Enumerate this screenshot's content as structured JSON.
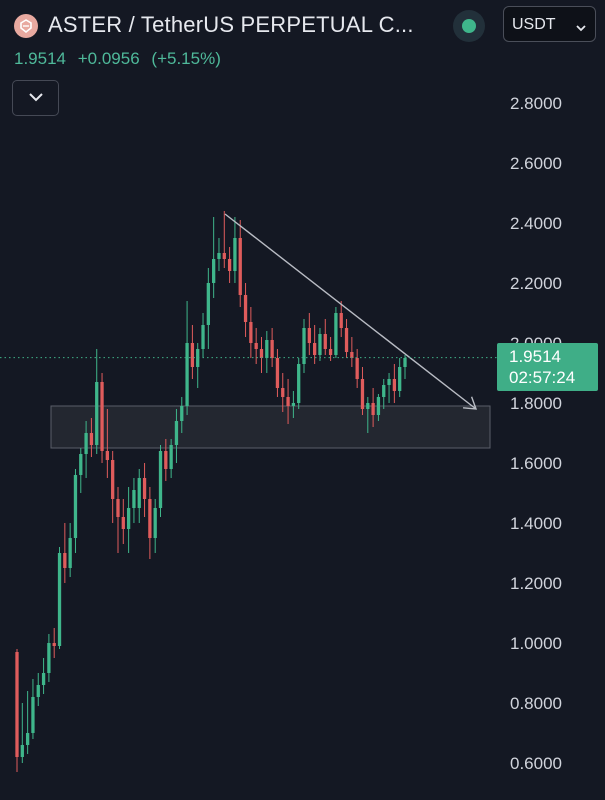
{
  "header": {
    "logo_icon": "aster-logo-icon",
    "title": "ASTER / TetherUS PERPETUAL C...",
    "status_icon": "market-open-dot-icon",
    "currency": {
      "label": "USDT",
      "icon": "chevron-down-icon"
    },
    "price": "1.9514",
    "change": "+0.0956",
    "change_pct": "(+5.15%)",
    "collapse_icon": "chevron-down-icon"
  },
  "colors": {
    "up": "#3fb68b",
    "down": "#e05c5c",
    "background": "#141823",
    "accent": "#3fae87"
  },
  "last_price": {
    "value": "1.9514",
    "countdown": "02:57:24"
  },
  "chart_data": {
    "type": "candlestick",
    "y_axis": {
      "range": [
        0.56,
        2.86
      ],
      "ticks": [
        "2.8000",
        "2.6000",
        "2.4000",
        "2.2000",
        "2.0000",
        "1.8000",
        "1.6000",
        "1.4000",
        "1.2000",
        "1.0000",
        "0.8000",
        "0.6000"
      ]
    },
    "grid": false,
    "last_price_line": 1.9514,
    "support_zone": {
      "top": 1.79,
      "bottom": 1.65
    },
    "trendline": {
      "start": 2.43,
      "end": 1.78
    },
    "candles": [
      [
        0.97,
        0.98,
        0.57,
        0.62
      ],
      [
        0.62,
        0.8,
        0.6,
        0.66
      ],
      [
        0.66,
        0.84,
        0.63,
        0.7
      ],
      [
        0.7,
        0.88,
        0.68,
        0.82
      ],
      [
        0.82,
        0.9,
        0.79,
        0.86
      ],
      [
        0.86,
        0.95,
        0.83,
        0.9
      ],
      [
        0.9,
        1.03,
        0.87,
        1.0
      ],
      [
        1.0,
        1.05,
        0.95,
        0.99
      ],
      [
        0.99,
        1.32,
        0.98,
        1.3
      ],
      [
        1.3,
        1.4,
        1.2,
        1.25
      ],
      [
        1.25,
        1.4,
        1.22,
        1.35
      ],
      [
        1.35,
        1.58,
        1.3,
        1.56
      ],
      [
        1.56,
        1.65,
        1.5,
        1.63
      ],
      [
        1.63,
        1.74,
        1.55,
        1.7
      ],
      [
        1.7,
        1.75,
        1.62,
        1.66
      ],
      [
        1.66,
        1.98,
        1.63,
        1.87
      ],
      [
        1.87,
        1.9,
        1.6,
        1.64
      ],
      [
        1.64,
        1.78,
        1.55,
        1.61
      ],
      [
        1.61,
        1.64,
        1.4,
        1.48
      ],
      [
        1.48,
        1.52,
        1.3,
        1.42
      ],
      [
        1.42,
        1.48,
        1.33,
        1.38
      ],
      [
        1.38,
        1.52,
        1.3,
        1.45
      ],
      [
        1.45,
        1.55,
        1.4,
        1.51
      ],
      [
        1.45,
        1.58,
        1.4,
        1.55
      ],
      [
        1.55,
        1.6,
        1.42,
        1.48
      ],
      [
        1.48,
        1.52,
        1.28,
        1.35
      ],
      [
        1.35,
        1.48,
        1.3,
        1.45
      ],
      [
        1.45,
        1.66,
        1.42,
        1.64
      ],
      [
        1.64,
        1.68,
        1.54,
        1.58
      ],
      [
        1.58,
        1.68,
        1.55,
        1.66
      ],
      [
        1.66,
        1.78,
        1.6,
        1.74
      ],
      [
        1.74,
        1.82,
        1.7,
        1.79
      ],
      [
        1.79,
        2.14,
        1.76,
        2.0
      ],
      [
        2.0,
        2.06,
        1.88,
        1.92
      ],
      [
        1.92,
        2.0,
        1.85,
        1.98
      ],
      [
        1.98,
        2.1,
        1.95,
        2.06
      ],
      [
        2.06,
        2.25,
        1.98,
        2.2
      ],
      [
        2.2,
        2.42,
        2.15,
        2.28
      ],
      [
        2.28,
        2.35,
        2.24,
        2.3
      ],
      [
        2.3,
        2.44,
        2.25,
        2.28
      ],
      [
        2.28,
        2.32,
        2.2,
        2.24
      ],
      [
        2.24,
        2.42,
        2.2,
        2.35
      ],
      [
        2.35,
        2.41,
        2.12,
        2.16
      ],
      [
        2.16,
        2.2,
        2.02,
        2.07
      ],
      [
        2.07,
        2.12,
        1.95,
        2.0
      ],
      [
        2.0,
        2.05,
        1.93,
        1.98
      ],
      [
        1.98,
        2.02,
        1.9,
        1.95
      ],
      [
        1.95,
        2.04,
        1.9,
        2.01
      ],
      [
        2.01,
        2.05,
        1.92,
        1.95
      ],
      [
        1.95,
        1.98,
        1.82,
        1.85
      ],
      [
        1.85,
        1.9,
        1.77,
        1.82
      ],
      [
        1.82,
        1.88,
        1.73,
        1.79
      ],
      [
        1.79,
        1.84,
        1.75,
        1.8
      ],
      [
        1.8,
        1.95,
        1.78,
        1.93
      ],
      [
        1.93,
        2.08,
        1.9,
        2.05
      ],
      [
        2.05,
        2.1,
        1.96,
        2.0
      ],
      [
        2.0,
        2.06,
        1.93,
        1.96
      ],
      [
        1.96,
        2.05,
        1.94,
        2.03
      ],
      [
        2.03,
        2.08,
        1.96,
        1.98
      ],
      [
        1.98,
        2.02,
        1.94,
        1.96
      ],
      [
        1.96,
        2.12,
        1.95,
        2.1
      ],
      [
        2.1,
        2.14,
        2.02,
        2.05
      ],
      [
        2.05,
        2.08,
        1.95,
        1.97
      ],
      [
        1.97,
        2.02,
        1.92,
        1.95
      ],
      [
        1.95,
        1.98,
        1.85,
        1.88
      ],
      [
        1.88,
        1.92,
        1.76,
        1.78
      ],
      [
        1.78,
        1.82,
        1.7,
        1.8
      ],
      [
        1.8,
        1.85,
        1.72,
        1.76
      ],
      [
        1.76,
        1.83,
        1.74,
        1.82
      ],
      [
        1.82,
        1.88,
        1.78,
        1.86
      ],
      [
        1.86,
        1.9,
        1.8,
        1.88
      ],
      [
        1.88,
        1.93,
        1.8,
        1.84
      ],
      [
        1.84,
        1.95,
        1.82,
        1.92
      ],
      [
        1.92,
        1.96,
        1.88,
        1.95
      ]
    ]
  }
}
